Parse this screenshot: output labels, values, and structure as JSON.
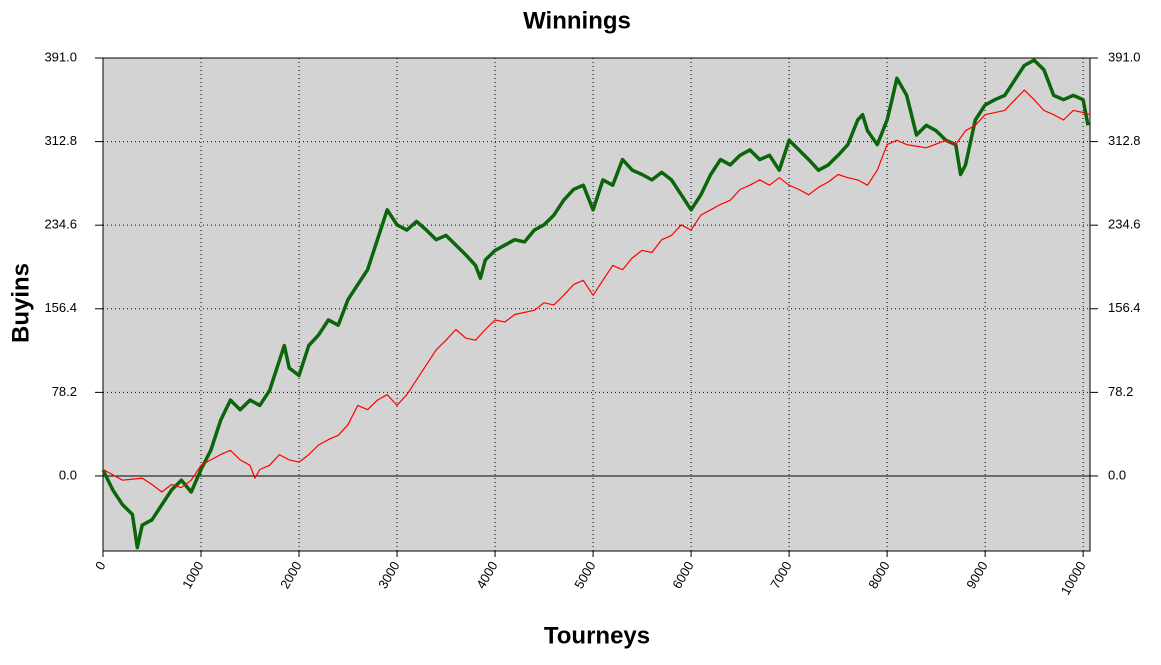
{
  "chart_data": {
    "type": "line",
    "title": "Winnings",
    "x_label": "Tourneys",
    "y_label": "Buyins",
    "xlim": [
      0,
      10070
    ],
    "ylim": [
      -70.2,
      391
    ],
    "xticks": [
      0,
      1000,
      2000,
      3000,
      4000,
      5000,
      6000,
      7000,
      8000,
      9000,
      10000
    ],
    "yticks": [
      {
        "value": 0,
        "label": "0.0"
      },
      78.2,
      156.4,
      234.6,
      312.8,
      {
        "value": 391,
        "label": "391.0"
      }
    ],
    "grid": true,
    "background": "#d3d3d3",
    "series": [
      {
        "color": "#0b650b",
        "width": 3.5,
        "x": [
          0,
          100,
          200,
          300,
          350,
          400,
          500,
          600,
          700,
          800,
          900,
          1000,
          1100,
          1200,
          1300,
          1400,
          1500,
          1600,
          1700,
          1800,
          1850,
          1900,
          2000,
          2100,
          2200,
          2300,
          2400,
          2500,
          2600,
          2700,
          2800,
          2900,
          3000,
          3100,
          3200,
          3300,
          3400,
          3500,
          3600,
          3700,
          3800,
          3850,
          3900,
          4000,
          4100,
          4200,
          4300,
          4400,
          4500,
          4600,
          4700,
          4800,
          4900,
          5000,
          5100,
          5200,
          5300,
          5400,
          5500,
          5600,
          5700,
          5800,
          5900,
          6000,
          6100,
          6200,
          6300,
          6400,
          6500,
          6600,
          6700,
          6800,
          6900,
          7000,
          7100,
          7200,
          7300,
          7400,
          7500,
          7600,
          7700,
          7750,
          7800,
          7900,
          8000,
          8050,
          8100,
          8200,
          8300,
          8400,
          8500,
          8600,
          8700,
          8750,
          8800,
          8900,
          9000,
          9100,
          9200,
          9300,
          9400,
          9500,
          9600,
          9700,
          9800,
          9900,
          10000,
          10050
        ],
        "values": [
          5.6,
          -13,
          -27,
          -36,
          -67,
          -46,
          -41,
          -27,
          -13,
          -4,
          -15,
          6,
          24,
          52,
          71,
          62,
          71,
          66,
          80,
          108,
          122,
          101,
          94,
          122,
          132,
          146,
          141,
          165,
          179,
          193,
          221,
          249,
          235,
          230,
          238,
          230,
          221,
          225,
          216,
          207,
          197,
          185,
          202,
          211,
          216,
          221,
          219,
          230,
          235,
          244,
          258,
          268,
          272,
          249,
          277,
          272,
          296,
          286,
          282,
          277,
          284,
          277,
          263,
          249,
          263,
          282,
          296,
          291,
          300,
          305,
          296,
          300,
          286,
          314,
          305,
          296,
          286,
          291,
          300,
          310,
          333,
          338,
          323,
          310,
          333,
          352,
          372,
          356,
          319,
          328,
          323,
          314,
          310,
          282,
          291,
          333,
          347,
          352,
          356,
          370,
          384,
          389,
          380,
          356,
          352,
          356,
          352,
          328
        ]
      },
      {
        "color": "#ff0000",
        "width": 1.2,
        "x": [
          0,
          200,
          400,
          500,
          600,
          700,
          800,
          900,
          1000,
          1100,
          1200,
          1300,
          1400,
          1500,
          1550,
          1600,
          1700,
          1800,
          1900,
          2000,
          2100,
          2200,
          2300,
          2400,
          2500,
          2600,
          2700,
          2800,
          2900,
          3000,
          3100,
          3200,
          3300,
          3400,
          3500,
          3600,
          3700,
          3800,
          3900,
          4000,
          4100,
          4200,
          4400,
          4500,
          4600,
          4700,
          4800,
          4900,
          5000,
          5100,
          5200,
          5300,
          5400,
          5500,
          5600,
          5700,
          5800,
          5900,
          6000,
          6100,
          6200,
          6300,
          6400,
          6500,
          6600,
          6700,
          6800,
          6900,
          7000,
          7100,
          7200,
          7300,
          7400,
          7500,
          7600,
          7700,
          7800,
          7900,
          8000,
          8100,
          8200,
          8400,
          8600,
          8700,
          8800,
          8900,
          9000,
          9200,
          9400,
          9500,
          9600,
          9700,
          9800,
          9900,
          10000,
          10070
        ],
        "values": [
          6,
          -4,
          -2,
          -8,
          -15,
          -8,
          -11,
          -4,
          10,
          15,
          20,
          24,
          15,
          10,
          -2,
          6,
          10,
          20,
          15,
          13,
          20,
          29,
          34,
          38,
          48,
          66,
          62,
          71,
          76,
          66,
          76,
          90,
          104,
          118,
          127,
          137,
          129,
          127,
          137,
          146,
          144,
          151,
          155,
          162,
          160,
          169,
          179,
          183,
          169,
          183,
          197,
          193,
          204,
          211,
          209,
          221,
          225,
          235,
          230,
          244,
          249,
          254,
          258,
          268,
          272,
          277,
          272,
          279,
          272,
          268,
          263,
          270,
          275,
          282,
          279,
          277,
          272,
          286,
          310,
          314,
          310,
          307,
          314,
          310,
          323,
          328,
          338,
          342,
          361,
          352,
          342,
          338,
          333,
          342,
          340,
          338
        ]
      }
    ]
  }
}
